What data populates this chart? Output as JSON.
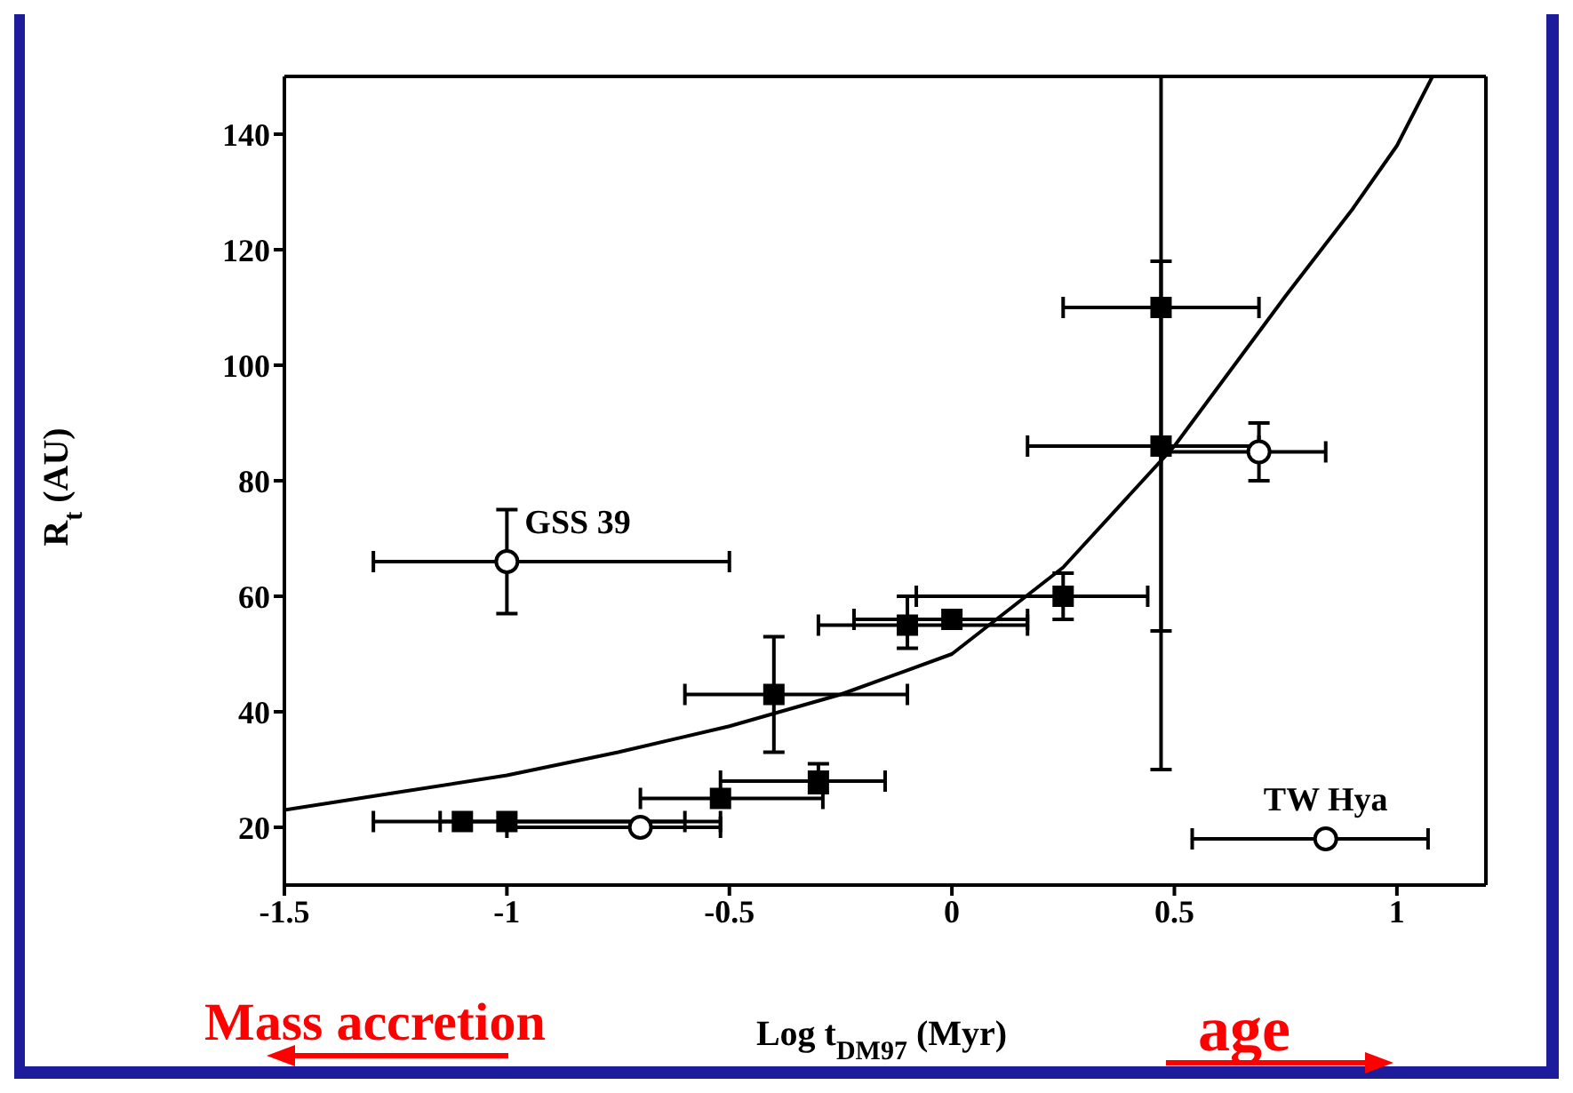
{
  "chart_data": {
    "type": "scatter",
    "xlabel": "Log t$_{DM97}$ (Myr)",
    "ylabel": "R$_{t}$ (AU)",
    "xlim": [
      -1.5,
      1.2
    ],
    "xticks": [
      -1.5,
      -1,
      -0.5,
      0,
      0.5,
      1
    ],
    "ylim": [
      10,
      150
    ],
    "yticks": [
      20,
      40,
      60,
      80,
      100,
      120,
      140
    ],
    "grid": false,
    "legend": false,
    "series": [
      {
        "marker": "square",
        "color": "#000000",
        "x": [
          -1.1,
          -1,
          -0.52,
          -0.3,
          -0.4,
          -0.1,
          0,
          0.25,
          0.47,
          0.47
        ],
        "values": [
          21,
          21,
          25,
          28,
          43,
          55,
          56,
          60,
          110,
          86
        ],
        "errors": [
          null,
          null,
          null,
          [
            26,
            31
          ],
          [
            33,
            53
          ],
          [
            51,
            60
          ],
          null,
          [
            56,
            64
          ],
          [
            30,
            150
          ],
          [
            54,
            118
          ]
        ],
        "xerrors": [
          [
            -1.3,
            -0.6
          ],
          [
            -1.15,
            -0.52
          ],
          [
            -0.7,
            -0.29
          ],
          [
            -0.52,
            -0.15
          ],
          [
            -0.6,
            -0.1
          ],
          [
            -0.3,
            0.17
          ],
          [
            -0.22,
            0.17
          ],
          [
            -0.08,
            0.44
          ],
          [
            0.25,
            0.69
          ],
          [
            0.17,
            0.69
          ]
        ]
      },
      {
        "marker": "circle",
        "color": "#000000",
        "x": [
          -1,
          -0.7,
          0.69,
          0.84
        ],
        "values": [
          66,
          20,
          85,
          18
        ],
        "errors": [
          [
            57,
            75
          ],
          null,
          [
            80,
            90
          ],
          null
        ],
        "xerrors": [
          [
            -1.3,
            -0.5
          ],
          [
            -1,
            -0.52
          ],
          [
            0.47,
            0.84
          ],
          [
            0.54,
            1.07
          ]
        ]
      },
      {
        "type": "line",
        "marker": "none",
        "color": "#000000",
        "x": [
          -1.5,
          -1.25,
          -1,
          -0.75,
          -0.5,
          -0.25,
          0,
          0.25,
          0.5,
          0.75,
          0.9,
          1,
          1.08
        ],
        "values": [
          23,
          26,
          29,
          33,
          37.5,
          43,
          50,
          65,
          86,
          112,
          127,
          138,
          150
        ]
      }
    ],
    "annotations": [
      {
        "text": "GSS 39",
        "x": -1,
        "y": 66
      },
      {
        "text": "TW Hya",
        "x": 0.84,
        "y": 18
      },
      "Mass accretion",
      "age"
    ]
  }
}
